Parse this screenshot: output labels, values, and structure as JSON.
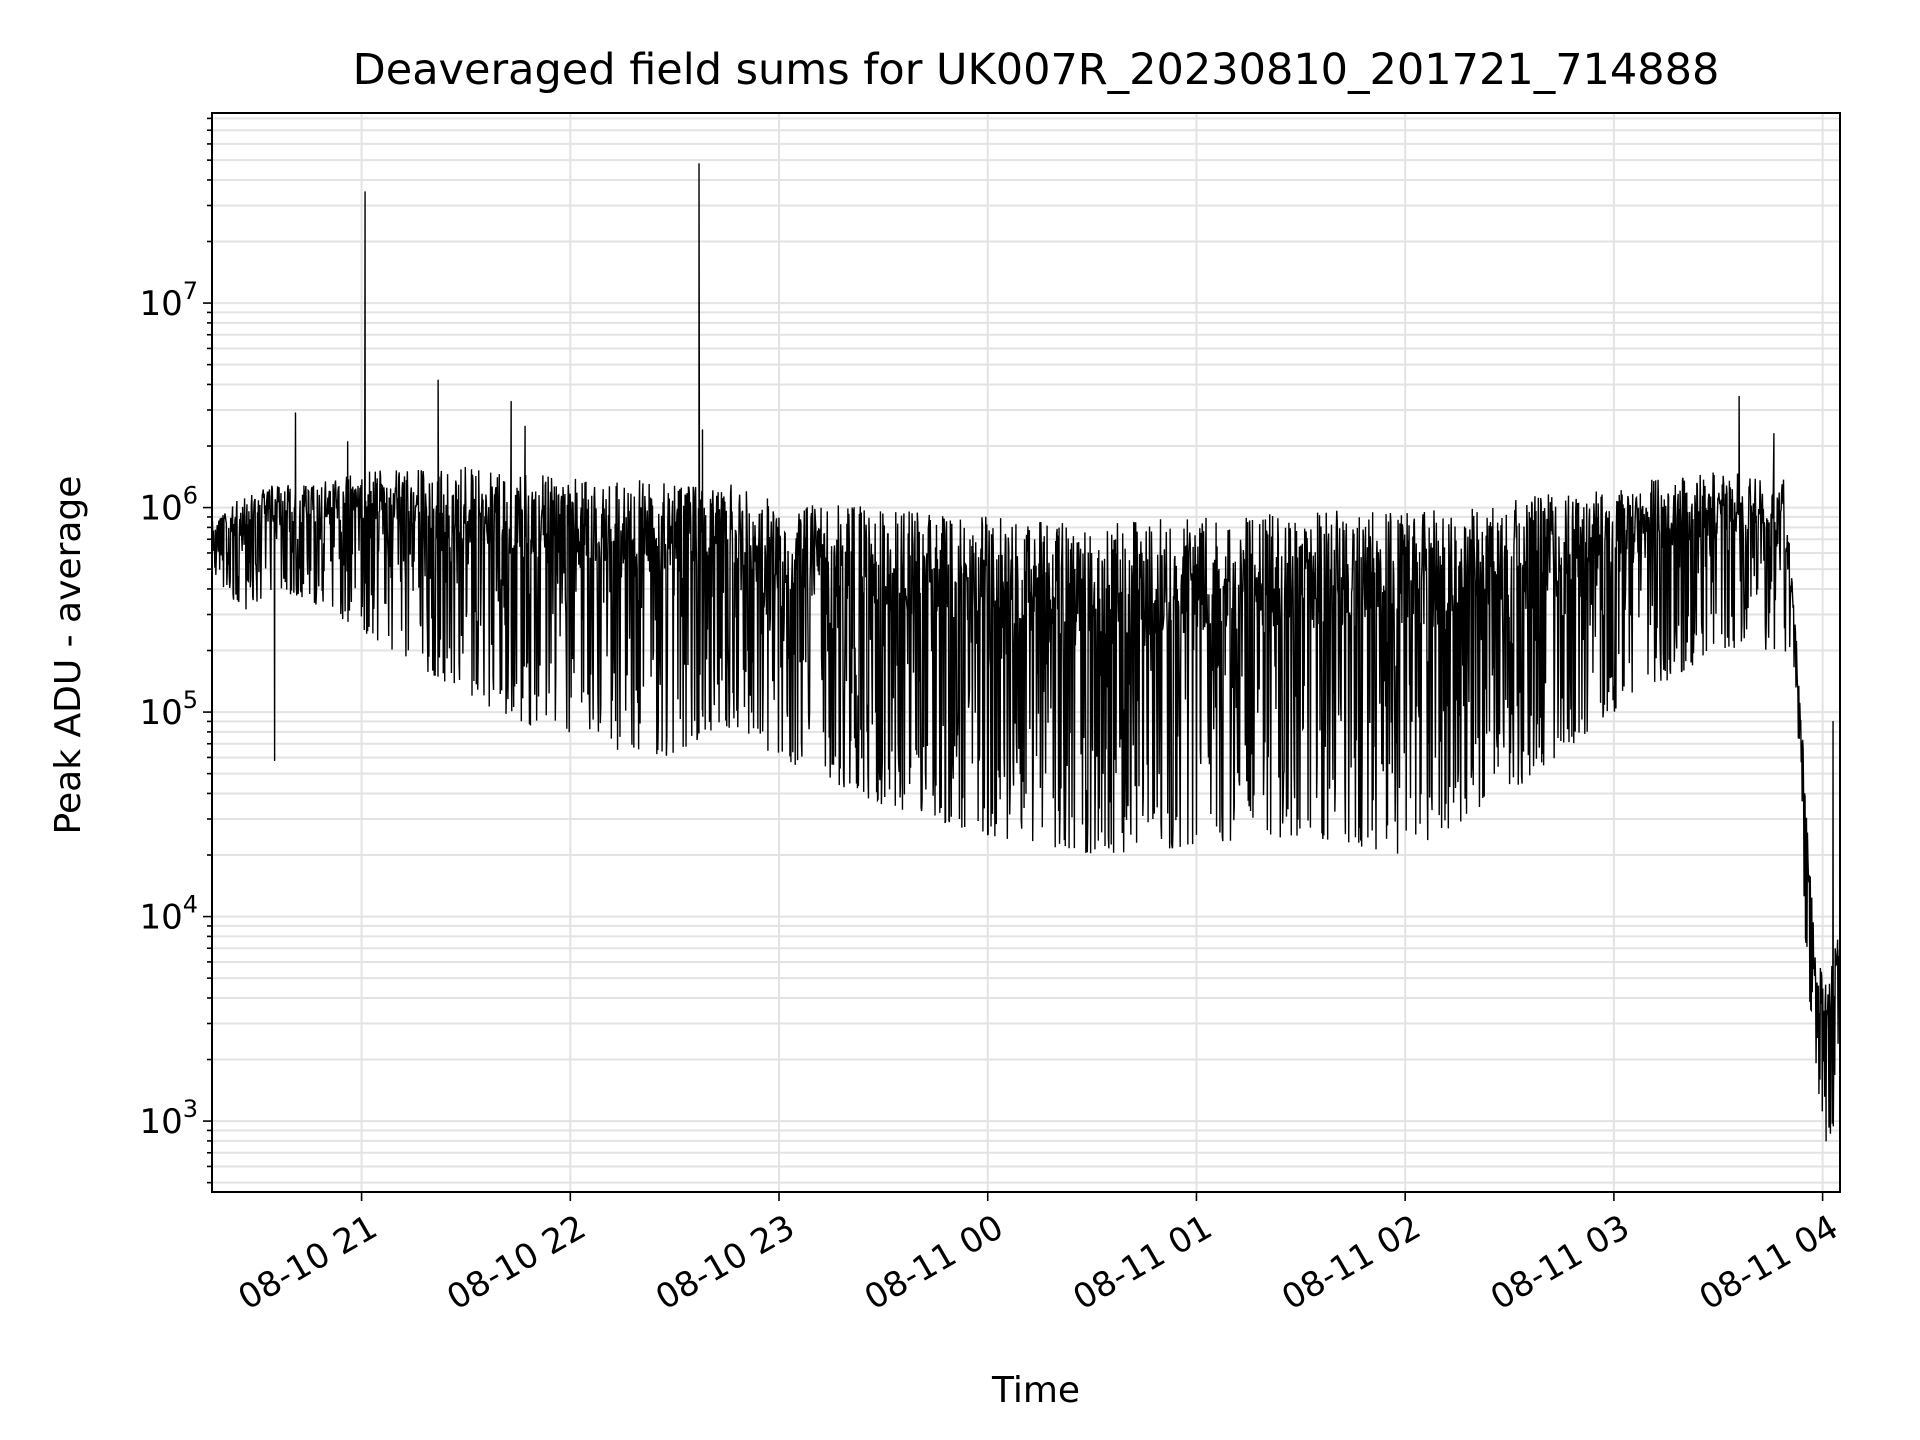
{
  "chart_data": {
    "type": "line",
    "title": "Deaveraged field sums for UK007R_20230810_201721_714888",
    "xlabel": "Time",
    "ylabel": "Peak ADU - average",
    "yscale": "log",
    "ylim": [
      450,
      85000000
    ],
    "xlim": [
      "2023-08-10 20:17",
      "2023-08-11 04:05"
    ],
    "grid": true,
    "x_ticks": [
      {
        "t": "2023-08-10 21:00",
        "label": "08-10 21"
      },
      {
        "t": "2023-08-10 22:00",
        "label": "08-10 22"
      },
      {
        "t": "2023-08-10 23:00",
        "label": "08-10 23"
      },
      {
        "t": "2023-08-11 00:00",
        "label": "08-11 00"
      },
      {
        "t": "2023-08-11 01:00",
        "label": "08-11 01"
      },
      {
        "t": "2023-08-11 02:00",
        "label": "08-11 02"
      },
      {
        "t": "2023-08-11 03:00",
        "label": "08-11 03"
      },
      {
        "t": "2023-08-11 04:00",
        "label": "08-11 04"
      }
    ],
    "y_ticks": [
      {
        "value": 1000,
        "base": "10",
        "exp": "3"
      },
      {
        "value": 10000,
        "base": "10",
        "exp": "4"
      },
      {
        "value": 100000,
        "base": "10",
        "exp": "5"
      },
      {
        "value": 1000000,
        "base": "10",
        "exp": "6"
      },
      {
        "value": 10000000,
        "base": "10",
        "exp": "7"
      }
    ],
    "series": [
      {
        "color": "#000000",
        "envelope": [
          {
            "t": "2023-08-10 20:17",
            "upper": 900000,
            "lower": 500000
          },
          {
            "t": "2023-08-10 20:25",
            "upper": 1100000,
            "lower": 300000
          },
          {
            "t": "2023-08-10 20:35",
            "upper": 1300000,
            "lower": 400000
          },
          {
            "t": "2023-08-10 20:45",
            "upper": 1300000,
            "lower": 350000
          },
          {
            "t": "2023-08-10 21:00",
            "upper": 1500000,
            "lower": 250000
          },
          {
            "t": "2023-08-10 21:30",
            "upper": 1600000,
            "lower": 120000
          },
          {
            "t": "2023-08-10 22:00",
            "upper": 1400000,
            "lower": 70000
          },
          {
            "t": "2023-08-10 22:30",
            "upper": 1350000,
            "lower": 60000
          },
          {
            "t": "2023-08-10 22:40",
            "upper": 1400000,
            "lower": 80000
          },
          {
            "t": "2023-08-10 23:00",
            "upper": 1100000,
            "lower": 60000
          },
          {
            "t": "2023-08-10 23:30",
            "upper": 1000000,
            "lower": 35000
          },
          {
            "t": "2023-08-11 00:00",
            "upper": 900000,
            "lower": 25000
          },
          {
            "t": "2023-08-11 00:30",
            "upper": 850000,
            "lower": 20000
          },
          {
            "t": "2023-08-11 01:00",
            "upper": 900000,
            "lower": 22000
          },
          {
            "t": "2023-08-11 01:30",
            "upper": 950000,
            "lower": 25000
          },
          {
            "t": "2023-08-11 02:00",
            "upper": 1000000,
            "lower": 20000
          },
          {
            "t": "2023-08-11 02:30",
            "upper": 1100000,
            "lower": 40000
          },
          {
            "t": "2023-08-11 03:00",
            "upper": 1300000,
            "lower": 100000
          },
          {
            "t": "2023-08-11 03:30",
            "upper": 1500000,
            "lower": 200000
          },
          {
            "t": "2023-08-11 03:49",
            "upper": 1400000,
            "lower": 200000
          },
          {
            "t": "2023-08-11 03:52",
            "upper": 300000,
            "lower": 150000
          },
          {
            "t": "2023-08-11 03:55",
            "upper": 50000,
            "lower": 8000
          },
          {
            "t": "2023-08-11 03:58",
            "upper": 6000,
            "lower": 1500
          },
          {
            "t": "2023-08-11 04:02",
            "upper": 5000,
            "lower": 800
          },
          {
            "t": "2023-08-11 04:05",
            "upper": 10000,
            "lower": 1200
          }
        ],
        "spikes": [
          {
            "t": "2023-08-10 20:41",
            "value": 2900000
          },
          {
            "t": "2023-08-10 20:35",
            "value": 58000
          },
          {
            "t": "2023-08-10 20:56",
            "value": 2100000
          },
          {
            "t": "2023-08-10 21:01",
            "value": 35000000
          },
          {
            "t": "2023-08-10 21:22",
            "value": 4200000
          },
          {
            "t": "2023-08-10 21:43",
            "value": 3300000
          },
          {
            "t": "2023-08-10 21:47",
            "value": 2500000
          },
          {
            "t": "2023-08-10 22:37",
            "value": 48000000
          },
          {
            "t": "2023-08-10 22:38",
            "value": 2400000
          },
          {
            "t": "2023-08-11 03:36",
            "value": 3500000
          },
          {
            "t": "2023-08-11 03:46",
            "value": 2300000
          },
          {
            "t": "2023-08-11 04:03",
            "value": 90000
          },
          {
            "t": "2023-08-11 04:01",
            "value": 800
          }
        ]
      }
    ]
  }
}
